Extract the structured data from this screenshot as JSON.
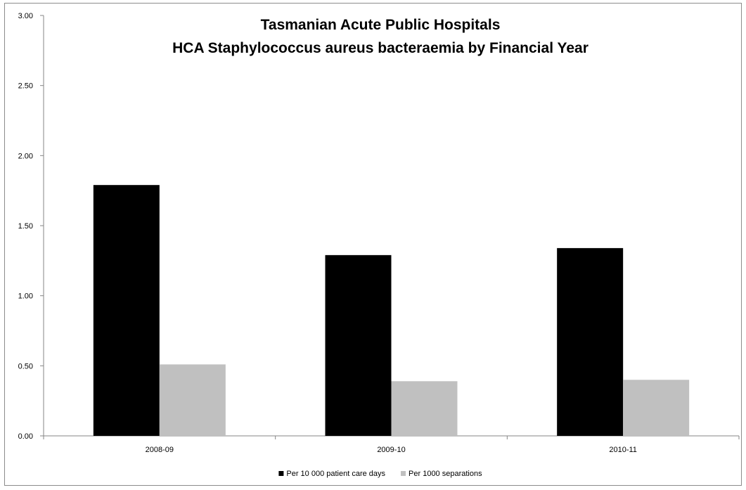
{
  "chart_data": {
    "type": "bar",
    "title": "Tasmanian Acute Public Hospitals",
    "subtitle": "HCA Staphylococcus aureus bacteraemia by Financial Year",
    "xlabel": "",
    "ylabel": "",
    "categories": [
      "2008-09",
      "2009-10",
      "2010-11"
    ],
    "series": [
      {
        "name": "Per 10 000 patient care days",
        "color": "#000000",
        "values": [
          1.79,
          1.29,
          1.34
        ]
      },
      {
        "name": "Per 1000 separations",
        "color": "#c0c0c0",
        "values": [
          0.51,
          0.39,
          0.4
        ]
      }
    ],
    "ylim": [
      0,
      3
    ],
    "yticks": [
      "0.00",
      "0.50",
      "1.00",
      "1.50",
      "2.00",
      "2.50",
      "3.00"
    ],
    "grid": false,
    "legend_position": "bottom"
  }
}
